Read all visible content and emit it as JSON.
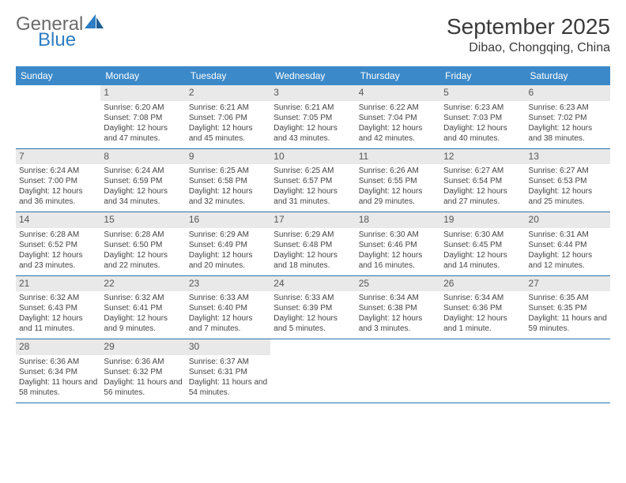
{
  "logo": {
    "text1": "General",
    "text2": "Blue"
  },
  "title": "September 2025",
  "location": "Dibao, Chongqing, China",
  "colors": {
    "header_bg": "#3b89c9",
    "header_text": "#ffffff",
    "daynum_bg": "#e9e9e9",
    "daynum_text": "#555555",
    "cell_border": "#2b6faf",
    "body_text": "#444444",
    "logo_gray": "#6b6b6b",
    "logo_blue": "#2f7dc4",
    "background": "#ffffff"
  },
  "typography": {
    "month_title_pt": 28,
    "location_pt": 16,
    "header_pt": 12,
    "daynum_pt": 12,
    "cell_pt": 10,
    "logo_pt": 24
  },
  "day_headers": [
    "Sunday",
    "Monday",
    "Tuesday",
    "Wednesday",
    "Thursday",
    "Friday",
    "Saturday"
  ],
  "weeks": [
    [
      {
        "n": "",
        "sr": "",
        "ss": "",
        "dl": ""
      },
      {
        "n": "1",
        "sr": "Sunrise: 6:20 AM",
        "ss": "Sunset: 7:08 PM",
        "dl": "Daylight: 12 hours and 47 minutes."
      },
      {
        "n": "2",
        "sr": "Sunrise: 6:21 AM",
        "ss": "Sunset: 7:06 PM",
        "dl": "Daylight: 12 hours and 45 minutes."
      },
      {
        "n": "3",
        "sr": "Sunrise: 6:21 AM",
        "ss": "Sunset: 7:05 PM",
        "dl": "Daylight: 12 hours and 43 minutes."
      },
      {
        "n": "4",
        "sr": "Sunrise: 6:22 AM",
        "ss": "Sunset: 7:04 PM",
        "dl": "Daylight: 12 hours and 42 minutes."
      },
      {
        "n": "5",
        "sr": "Sunrise: 6:23 AM",
        "ss": "Sunset: 7:03 PM",
        "dl": "Daylight: 12 hours and 40 minutes."
      },
      {
        "n": "6",
        "sr": "Sunrise: 6:23 AM",
        "ss": "Sunset: 7:02 PM",
        "dl": "Daylight: 12 hours and 38 minutes."
      }
    ],
    [
      {
        "n": "7",
        "sr": "Sunrise: 6:24 AM",
        "ss": "Sunset: 7:00 PM",
        "dl": "Daylight: 12 hours and 36 minutes."
      },
      {
        "n": "8",
        "sr": "Sunrise: 6:24 AM",
        "ss": "Sunset: 6:59 PM",
        "dl": "Daylight: 12 hours and 34 minutes."
      },
      {
        "n": "9",
        "sr": "Sunrise: 6:25 AM",
        "ss": "Sunset: 6:58 PM",
        "dl": "Daylight: 12 hours and 32 minutes."
      },
      {
        "n": "10",
        "sr": "Sunrise: 6:25 AM",
        "ss": "Sunset: 6:57 PM",
        "dl": "Daylight: 12 hours and 31 minutes."
      },
      {
        "n": "11",
        "sr": "Sunrise: 6:26 AM",
        "ss": "Sunset: 6:55 PM",
        "dl": "Daylight: 12 hours and 29 minutes."
      },
      {
        "n": "12",
        "sr": "Sunrise: 6:27 AM",
        "ss": "Sunset: 6:54 PM",
        "dl": "Daylight: 12 hours and 27 minutes."
      },
      {
        "n": "13",
        "sr": "Sunrise: 6:27 AM",
        "ss": "Sunset: 6:53 PM",
        "dl": "Daylight: 12 hours and 25 minutes."
      }
    ],
    [
      {
        "n": "14",
        "sr": "Sunrise: 6:28 AM",
        "ss": "Sunset: 6:52 PM",
        "dl": "Daylight: 12 hours and 23 minutes."
      },
      {
        "n": "15",
        "sr": "Sunrise: 6:28 AM",
        "ss": "Sunset: 6:50 PM",
        "dl": "Daylight: 12 hours and 22 minutes."
      },
      {
        "n": "16",
        "sr": "Sunrise: 6:29 AM",
        "ss": "Sunset: 6:49 PM",
        "dl": "Daylight: 12 hours and 20 minutes."
      },
      {
        "n": "17",
        "sr": "Sunrise: 6:29 AM",
        "ss": "Sunset: 6:48 PM",
        "dl": "Daylight: 12 hours and 18 minutes."
      },
      {
        "n": "18",
        "sr": "Sunrise: 6:30 AM",
        "ss": "Sunset: 6:46 PM",
        "dl": "Daylight: 12 hours and 16 minutes."
      },
      {
        "n": "19",
        "sr": "Sunrise: 6:30 AM",
        "ss": "Sunset: 6:45 PM",
        "dl": "Daylight: 12 hours and 14 minutes."
      },
      {
        "n": "20",
        "sr": "Sunrise: 6:31 AM",
        "ss": "Sunset: 6:44 PM",
        "dl": "Daylight: 12 hours and 12 minutes."
      }
    ],
    [
      {
        "n": "21",
        "sr": "Sunrise: 6:32 AM",
        "ss": "Sunset: 6:43 PM",
        "dl": "Daylight: 12 hours and 11 minutes."
      },
      {
        "n": "22",
        "sr": "Sunrise: 6:32 AM",
        "ss": "Sunset: 6:41 PM",
        "dl": "Daylight: 12 hours and 9 minutes."
      },
      {
        "n": "23",
        "sr": "Sunrise: 6:33 AM",
        "ss": "Sunset: 6:40 PM",
        "dl": "Daylight: 12 hours and 7 minutes."
      },
      {
        "n": "24",
        "sr": "Sunrise: 6:33 AM",
        "ss": "Sunset: 6:39 PM",
        "dl": "Daylight: 12 hours and 5 minutes."
      },
      {
        "n": "25",
        "sr": "Sunrise: 6:34 AM",
        "ss": "Sunset: 6:38 PM",
        "dl": "Daylight: 12 hours and 3 minutes."
      },
      {
        "n": "26",
        "sr": "Sunrise: 6:34 AM",
        "ss": "Sunset: 6:36 PM",
        "dl": "Daylight: 12 hours and 1 minute."
      },
      {
        "n": "27",
        "sr": "Sunrise: 6:35 AM",
        "ss": "Sunset: 6:35 PM",
        "dl": "Daylight: 11 hours and 59 minutes."
      }
    ],
    [
      {
        "n": "28",
        "sr": "Sunrise: 6:36 AM",
        "ss": "Sunset: 6:34 PM",
        "dl": "Daylight: 11 hours and 58 minutes."
      },
      {
        "n": "29",
        "sr": "Sunrise: 6:36 AM",
        "ss": "Sunset: 6:32 PM",
        "dl": "Daylight: 11 hours and 56 minutes."
      },
      {
        "n": "30",
        "sr": "Sunrise: 6:37 AM",
        "ss": "Sunset: 6:31 PM",
        "dl": "Daylight: 11 hours and 54 minutes."
      },
      {
        "n": "",
        "sr": "",
        "ss": "",
        "dl": ""
      },
      {
        "n": "",
        "sr": "",
        "ss": "",
        "dl": ""
      },
      {
        "n": "",
        "sr": "",
        "ss": "",
        "dl": ""
      },
      {
        "n": "",
        "sr": "",
        "ss": "",
        "dl": ""
      }
    ]
  ]
}
